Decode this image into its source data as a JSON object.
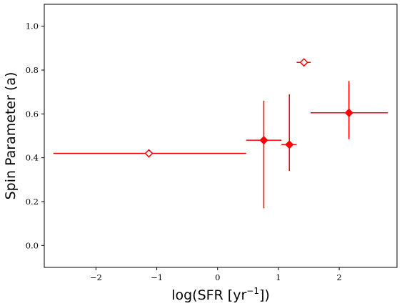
{
  "chart_data": {
    "type": "scatter",
    "xlabel": "log(SFR [yr",
    "xlabel_sup": "−1",
    "xlabel_end": "])",
    "ylabel": "Spin Parameter (a)",
    "xlim": [
      -2.85,
      2.95
    ],
    "ylim": [
      -0.1,
      1.1
    ],
    "xticks": [
      -2,
      -1,
      0,
      1,
      2
    ],
    "xtick_labels": [
      "−2",
      "−1",
      "0",
      "1",
      "2"
    ],
    "yticks": [
      0.0,
      0.2,
      0.4,
      0.6,
      0.8,
      1.0
    ],
    "ytick_labels": [
      "0.0",
      "0.2",
      "0.4",
      "0.6",
      "0.8",
      "1.0"
    ],
    "grid": false,
    "color": "#ff0000",
    "points": [
      {
        "x": -1.13,
        "y": 0.42,
        "x_lo": -2.7,
        "x_hi": 0.47,
        "y_lo": 0.42,
        "y_hi": 0.42,
        "marker": "open-diamond"
      },
      {
        "x": 0.76,
        "y": 0.48,
        "x_lo": 0.47,
        "x_hi": 1.05,
        "y_lo": 0.17,
        "y_hi": 0.66,
        "marker": "filled-diamond"
      },
      {
        "x": 1.18,
        "y": 0.46,
        "x_lo": 1.05,
        "x_hi": 1.3,
        "y_lo": 0.34,
        "y_hi": 0.69,
        "marker": "filled-diamond"
      },
      {
        "x": 1.42,
        "y": 0.835,
        "x_lo": 1.3,
        "x_hi": 1.53,
        "y_lo": 0.835,
        "y_hi": 0.835,
        "marker": "open-diamond"
      },
      {
        "x": 2.16,
        "y": 0.605,
        "x_lo": 1.53,
        "x_hi": 2.8,
        "y_lo": 0.485,
        "y_hi": 0.75,
        "marker": "filled-diamond"
      }
    ]
  }
}
